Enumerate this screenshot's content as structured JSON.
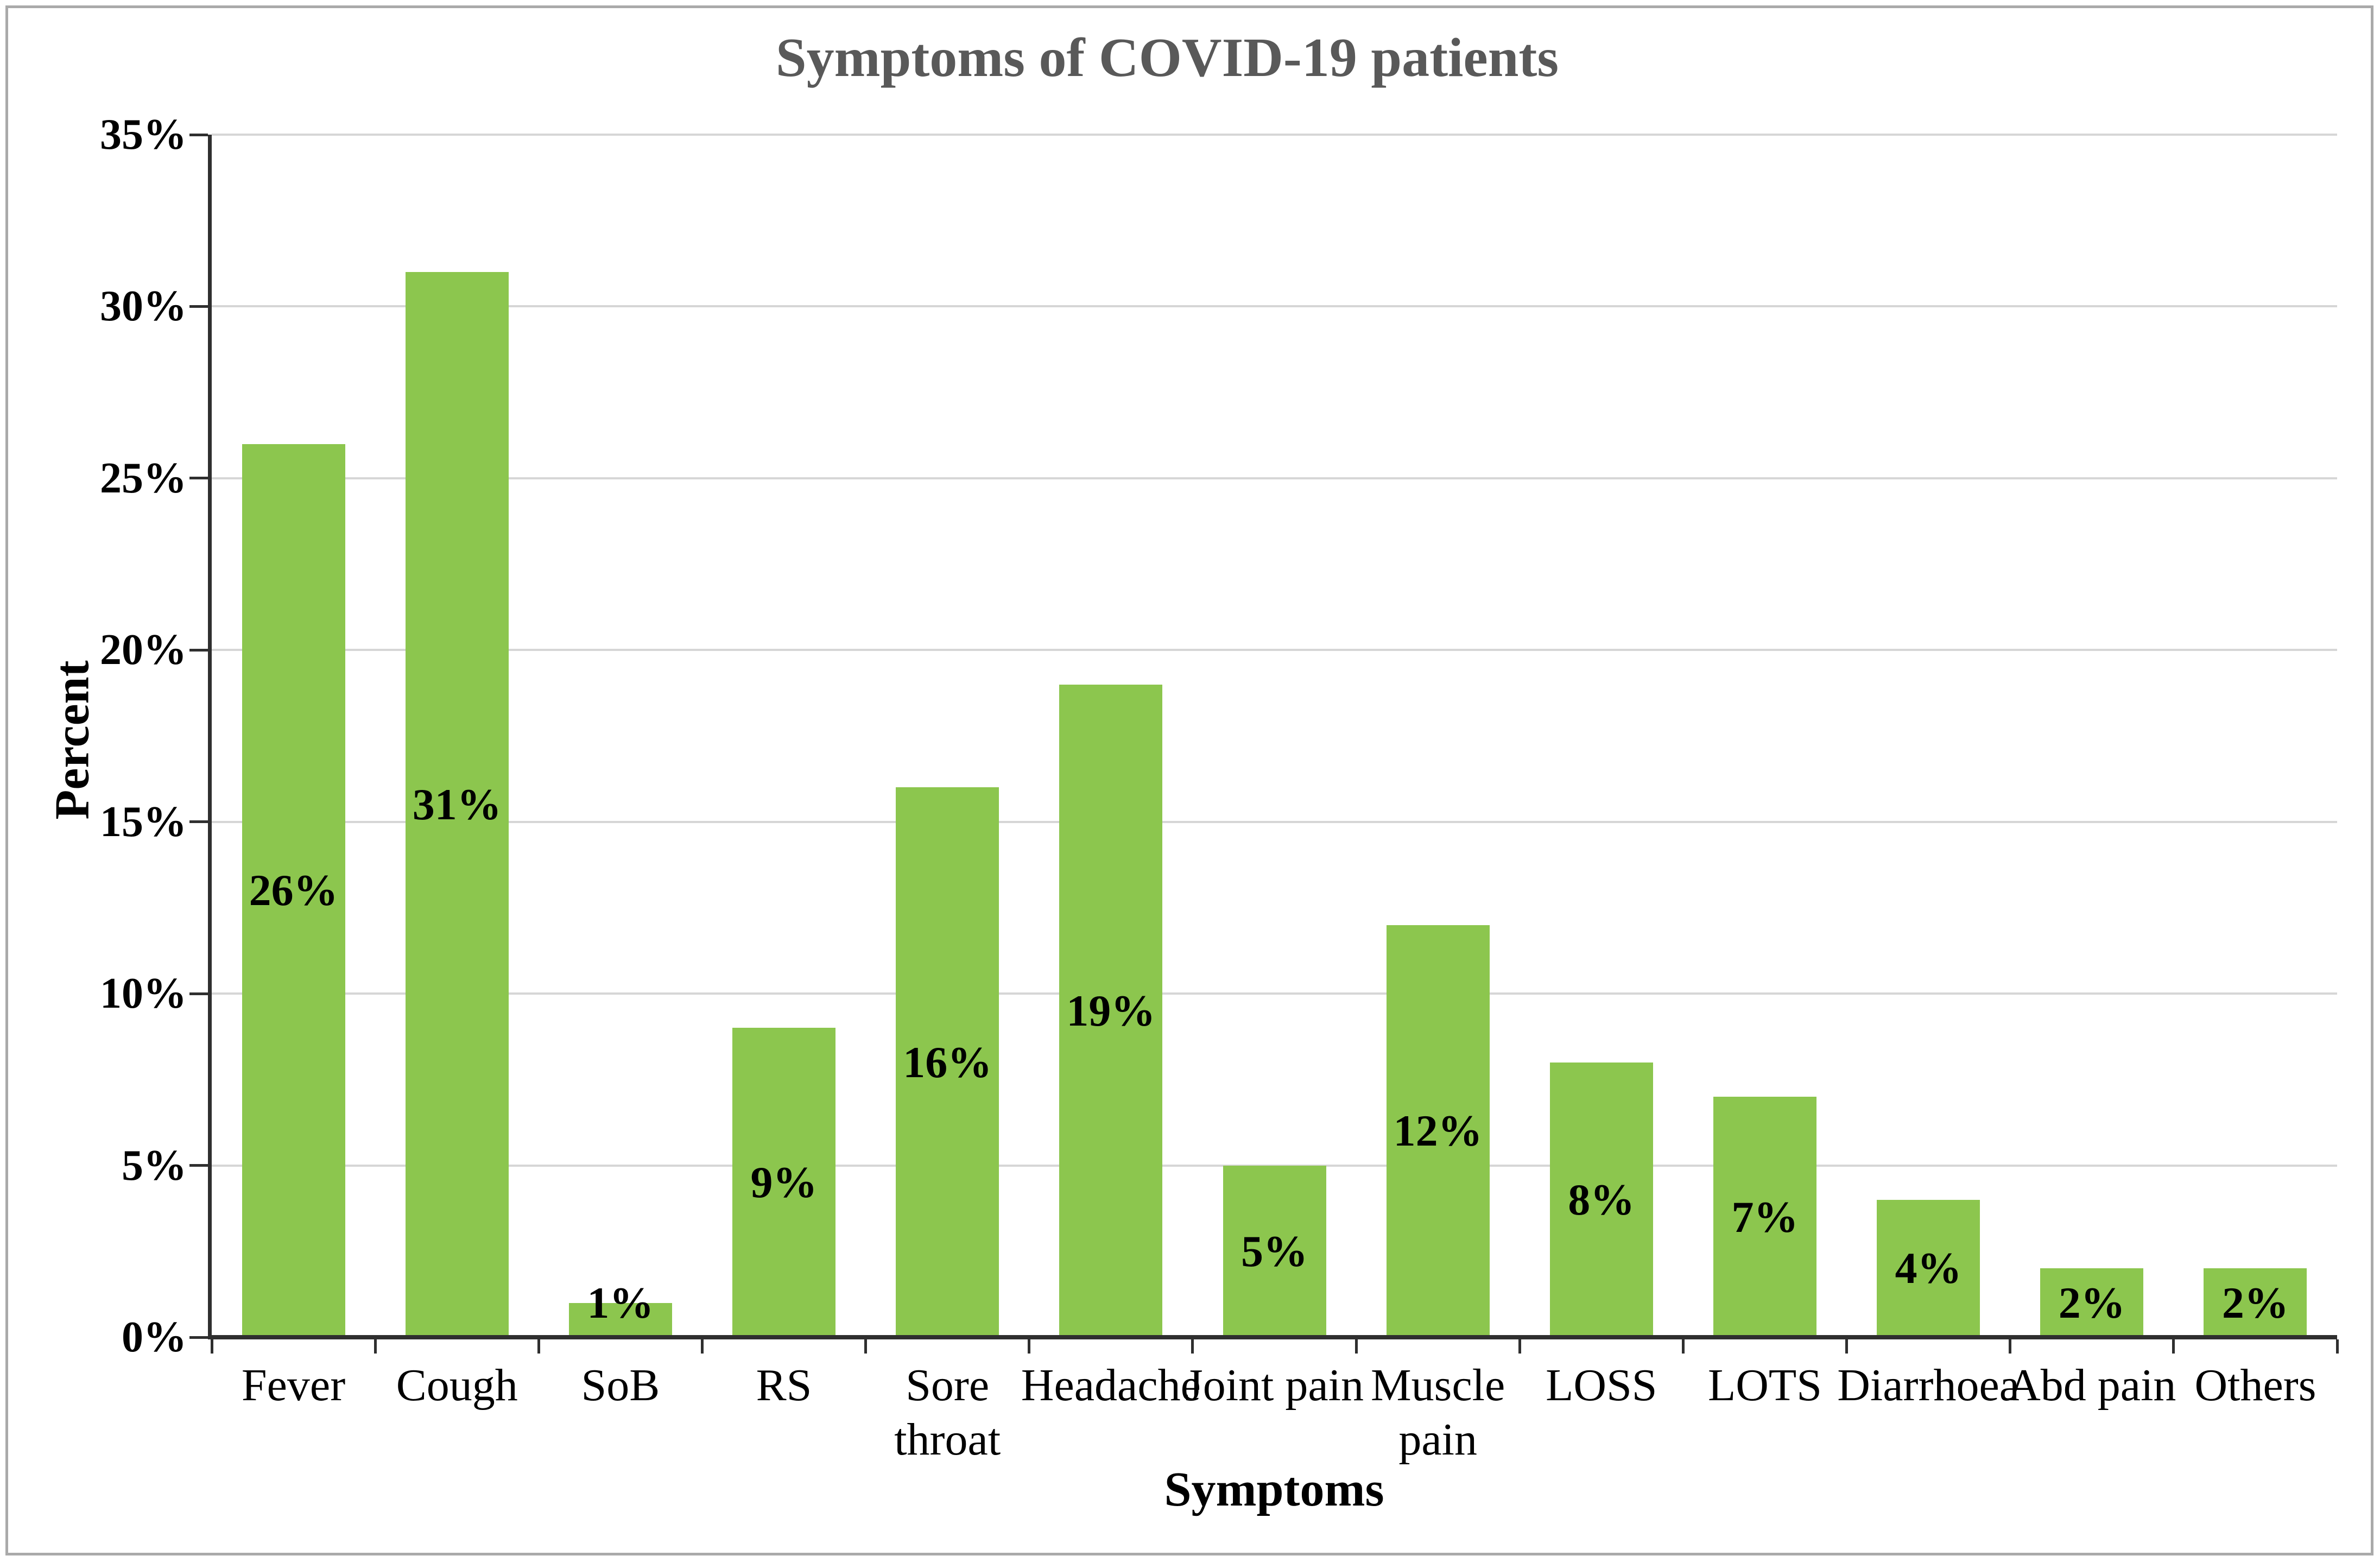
{
  "figure": {
    "title": "Symptoms of COVID-19 patients"
  },
  "chart_data": {
    "type": "bar",
    "title": "Symptoms of COVID-19 patients",
    "xlabel": "Symptoms",
    "ylabel": "Percent",
    "categories": [
      "Fever",
      "Cough",
      "SoB",
      "RS",
      "Sore throat",
      "Headache",
      "Joint pain",
      "Muscle pain",
      "LOSS",
      "LOTS",
      "Diarrhoea",
      "Abd pain",
      "Others"
    ],
    "category_lines": [
      [
        "Fever"
      ],
      [
        "Cough"
      ],
      [
        "SoB"
      ],
      [
        "RS"
      ],
      [
        "Sore",
        "throat"
      ],
      [
        "Headache"
      ],
      [
        "Joint pain"
      ],
      [
        "Muscle",
        "pain"
      ],
      [
        "LOSS"
      ],
      [
        "LOTS"
      ],
      [
        "Diarrhoea"
      ],
      [
        "Abd pain"
      ],
      [
        "Others"
      ]
    ],
    "values": [
      26,
      31,
      1,
      9,
      16,
      19,
      5,
      12,
      8,
      7,
      4,
      2,
      2
    ],
    "data_labels": [
      "26%",
      "31%",
      "1%",
      "9%",
      "16%",
      "19%",
      "5%",
      "12%",
      "8%",
      "7%",
      "4%",
      "2%",
      "2%"
    ],
    "data_label_center_pct": [
      13,
      15.5,
      1,
      4.5,
      8,
      9.5,
      2.5,
      6,
      4,
      3.5,
      2,
      1,
      1
    ],
    "ylim": [
      0,
      35
    ],
    "yticks": [
      0,
      5,
      10,
      15,
      20,
      25,
      30,
      35
    ],
    "ytick_labels": [
      "0%",
      "5%",
      "10%",
      "15%",
      "20%",
      "25%",
      "30%",
      "35%"
    ],
    "grid": "horizontal",
    "legend": "none",
    "colors": {
      "bar": "#8CC64E",
      "gridline": "#D6D6D6",
      "axis": "#2F2F2F",
      "title": "#595959",
      "text": "#000000",
      "frame": "#AAAAAA"
    }
  }
}
